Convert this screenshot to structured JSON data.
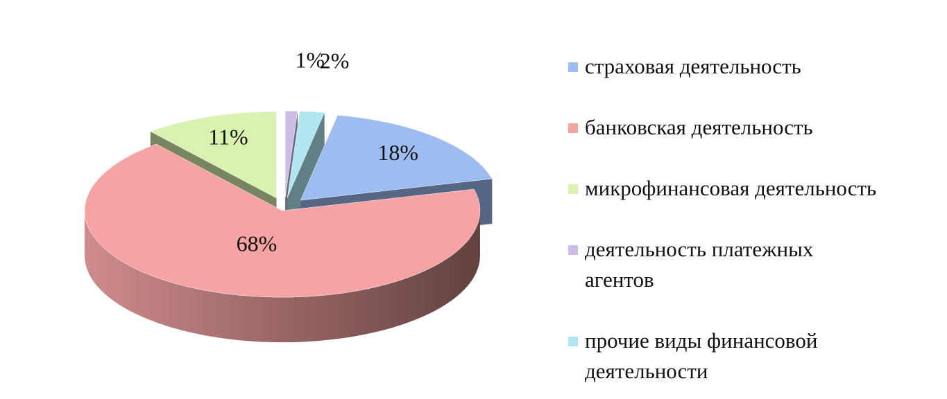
{
  "chart_data": {
    "type": "pie",
    "categories": [
      "страховая деятельность",
      "банковская деятельность",
      "микрофинансовая деятельность",
      "деятельность платежных агентов",
      "прочие виды финансовой деятельности"
    ],
    "values": [
      18,
      68,
      11,
      1,
      2
    ],
    "value_labels": [
      "18%",
      "68%",
      "11%",
      "1%",
      "2%"
    ],
    "colors": [
      "#9dbcf2",
      "#f5a3a3",
      "#d9f2b0",
      "#cbbde6",
      "#b0e6f0"
    ],
    "legend": "right"
  }
}
